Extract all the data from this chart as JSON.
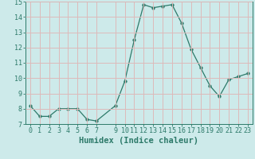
{
  "x": [
    0,
    1,
    2,
    3,
    4,
    5,
    6,
    7,
    9,
    10,
    11,
    12,
    13,
    14,
    15,
    16,
    17,
    18,
    19,
    20,
    21,
    22,
    23
  ],
  "y": [
    8.2,
    7.5,
    7.5,
    8.0,
    8.0,
    8.0,
    7.3,
    7.2,
    8.2,
    9.8,
    12.5,
    14.8,
    14.6,
    14.7,
    14.8,
    13.6,
    11.9,
    10.7,
    9.5,
    8.8,
    9.9,
    10.1,
    10.3
  ],
  "line_color": "#2d7a6a",
  "marker": "o",
  "marker_size": 2.5,
  "bg_color": "#cdeaea",
  "grid_color": "#ddbaba",
  "xlabel": "Humidex (Indice chaleur)",
  "xlim": [
    -0.5,
    23.5
  ],
  "ylim": [
    7,
    15
  ],
  "yticks": [
    7,
    8,
    9,
    10,
    11,
    12,
    13,
    14,
    15
  ],
  "xticks": [
    0,
    1,
    2,
    3,
    4,
    5,
    6,
    7,
    9,
    10,
    11,
    12,
    13,
    14,
    15,
    16,
    17,
    18,
    19,
    20,
    21,
    22,
    23
  ],
  "tick_color": "#2d7a6a",
  "label_fontsize": 7.5,
  "tick_fontsize": 6
}
